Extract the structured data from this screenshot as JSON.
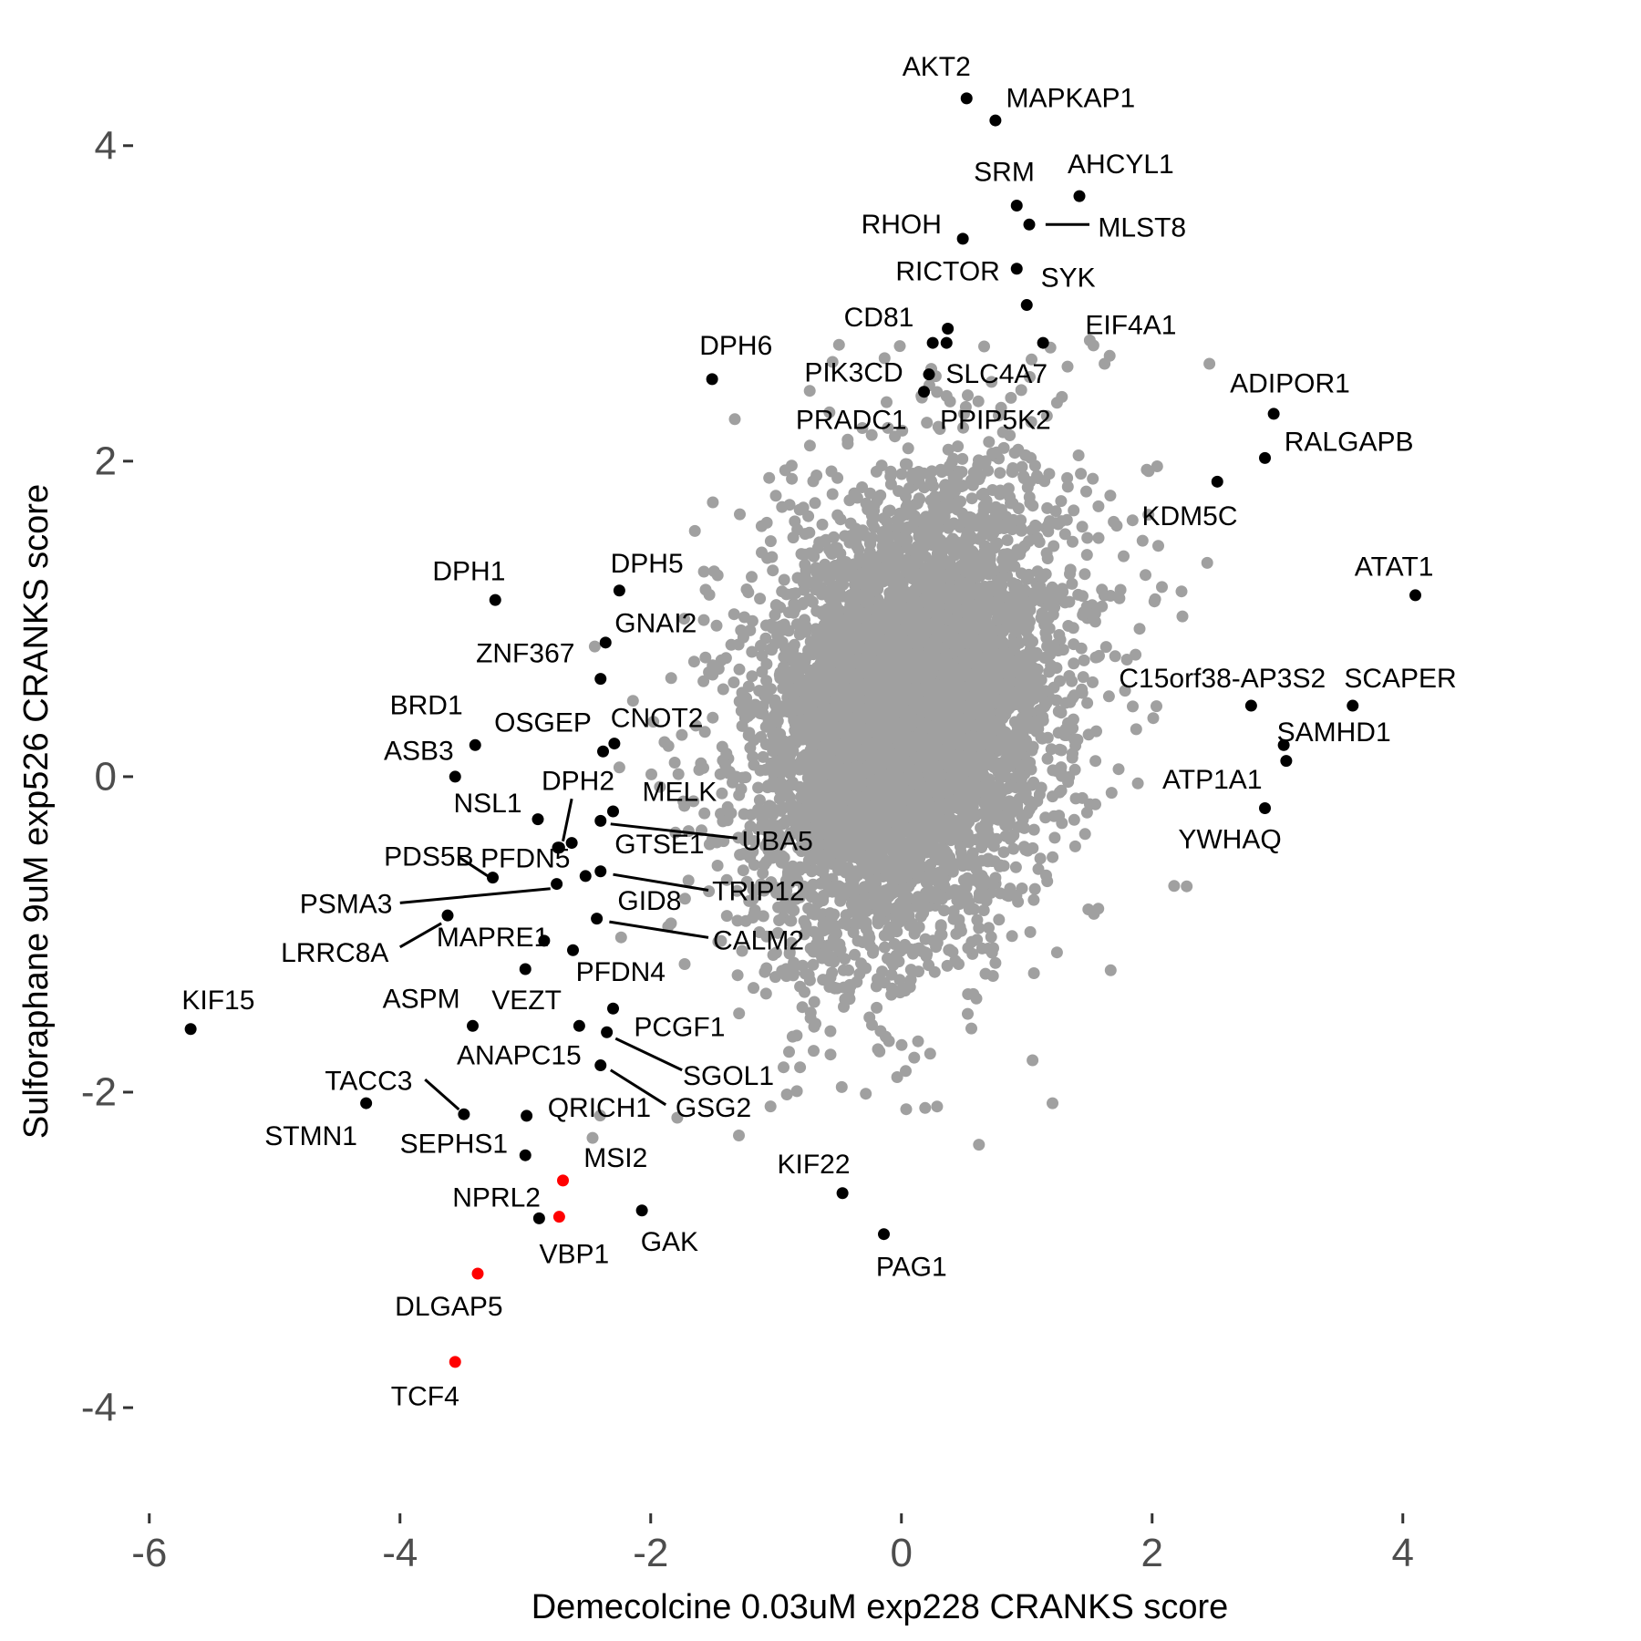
{
  "chart_data": {
    "type": "scatter",
    "xlabel": "Demecolcine 0.03uM exp228 CRANKS score",
    "ylabel": "Sulforaphane 9uM exp526 CRANKS score",
    "xlim": [
      -6.1,
      4.3
    ],
    "ylim": [
      -4.15,
      4.75
    ],
    "xticks": [
      -6,
      -4,
      -2,
      0,
      2,
      4
    ],
    "yticks": [
      -4,
      -2,
      0,
      2,
      4
    ],
    "xtick_labels": [
      "-6",
      "-4",
      "-2",
      "0",
      "2",
      "4"
    ],
    "ytick_labels": [
      "-4",
      "-2",
      "0",
      "2",
      "4"
    ],
    "grid": false,
    "legend": "none",
    "colors": {
      "background_genes": "#a0a0a0",
      "labeled_genes": "#000000",
      "highlight_genes": "#ff0000",
      "leader_line": "#000000"
    },
    "background_cloud": {
      "n_points": 6000,
      "center": [
        0.05,
        0.35
      ],
      "sd": [
        0.55,
        0.7
      ],
      "approx_range_x": [
        -2.9,
        2.6
      ],
      "approx_range_y": [
        -2.4,
        2.8
      ],
      "seed": 42
    },
    "labeled_points": [
      {
        "gene": "AKT2",
        "x": 0.52,
        "y": 4.3,
        "color": "black",
        "label_x": 0.28,
        "label_y": 4.5
      },
      {
        "gene": "MAPKAP1",
        "x": 0.75,
        "y": 4.16,
        "color": "black",
        "label_x": 1.35,
        "label_y": 4.3
      },
      {
        "gene": "SRM",
        "x": 0.92,
        "y": 3.62,
        "color": "black",
        "label_x": 0.82,
        "label_y": 3.83
      },
      {
        "gene": "AHCYL1",
        "x": 1.42,
        "y": 3.68,
        "color": "black",
        "label_x": 1.75,
        "label_y": 3.88
      },
      {
        "gene": "RHOH",
        "x": 0.49,
        "y": 3.41,
        "color": "black",
        "label_x": 0.0,
        "label_y": 3.5
      },
      {
        "gene": "MLST8",
        "x": 1.02,
        "y": 3.5,
        "color": "black",
        "label_x": 1.92,
        "label_y": 3.48,
        "line_from": [
          1.15,
          3.5
        ],
        "line_to": [
          1.5,
          3.5
        ]
      },
      {
        "gene": "RICTOR",
        "x": 0.92,
        "y": 3.22,
        "color": "black",
        "label_x": 0.37,
        "label_y": 3.2
      },
      {
        "gene": "SYK",
        "x": 1.0,
        "y": 2.99,
        "color": "black",
        "label_x": 1.33,
        "label_y": 3.16
      },
      {
        "gene": "EIF4A1",
        "x": 1.13,
        "y": 2.75,
        "color": "black",
        "label_x": 1.83,
        "label_y": 2.86
      },
      {
        "gene": "CD81",
        "x": 0.37,
        "y": 2.84,
        "color": "black",
        "label_x": -0.18,
        "label_y": 2.91
      },
      {
        "gene": "DPH6",
        "x": -1.51,
        "y": 2.52,
        "color": "black",
        "label_x": -1.32,
        "label_y": 2.73
      },
      {
        "gene": "PIK3CD",
        "x": 0.22,
        "y": 2.55,
        "color": "black",
        "label_x": -0.38,
        "label_y": 2.56
      },
      {
        "gene": "SLC4A7",
        "x": 0.25,
        "y": 2.75,
        "color": "black",
        "label_x": 0.76,
        "label_y": 2.55
      },
      {
        "gene": "PRADC1",
        "x": 0.18,
        "y": 2.44,
        "color": "black",
        "label_x": -0.4,
        "label_y": 2.26
      },
      {
        "gene": "PPIP5K2",
        "x": 0.36,
        "y": 2.75,
        "color": "black",
        "label_x": 0.75,
        "label_y": 2.26
      },
      {
        "gene": "ADIPOR1",
        "x": 2.97,
        "y": 2.3,
        "color": "black",
        "label_x": 3.1,
        "label_y": 2.49
      },
      {
        "gene": "RALGAPB",
        "x": 2.9,
        "y": 2.02,
        "color": "black",
        "label_x": 3.57,
        "label_y": 2.12
      },
      {
        "gene": "KDM5C",
        "x": 2.52,
        "y": 1.87,
        "color": "black",
        "label_x": 2.3,
        "label_y": 1.65
      },
      {
        "gene": "ATAT1",
        "x": 4.1,
        "y": 1.15,
        "color": "black",
        "label_x": 3.93,
        "label_y": 1.33
      },
      {
        "gene": "C15orf38-AP3S2",
        "x": 2.79,
        "y": 0.45,
        "color": "black",
        "label_x": 2.56,
        "label_y": 0.62
      },
      {
        "gene": "SCAPER",
        "x": 3.6,
        "y": 0.45,
        "color": "black",
        "label_x": 3.98,
        "label_y": 0.62
      },
      {
        "gene": "SAMHD1",
        "x": 3.05,
        "y": 0.2,
        "color": "black",
        "label_x": 3.45,
        "label_y": 0.28
      },
      {
        "gene": "ATP1A1",
        "x": 3.07,
        "y": 0.1,
        "color": "black",
        "label_x": 2.48,
        "label_y": -0.02
      },
      {
        "gene": "YWHAQ",
        "x": 2.9,
        "y": -0.2,
        "color": "black",
        "label_x": 2.62,
        "label_y": -0.4
      },
      {
        "gene": "DPH1",
        "x": -3.24,
        "y": 1.12,
        "color": "black",
        "label_x": -3.45,
        "label_y": 1.3
      },
      {
        "gene": "DPH5",
        "x": -2.25,
        "y": 1.18,
        "color": "black",
        "label_x": -2.03,
        "label_y": 1.35
      },
      {
        "gene": "GNAI2",
        "x": -2.36,
        "y": 0.85,
        "color": "black",
        "label_x": -1.96,
        "label_y": 0.97
      },
      {
        "gene": "ZNF367",
        "x": -2.4,
        "y": 0.62,
        "color": "black",
        "label_x": -3.0,
        "label_y": 0.78
      },
      {
        "gene": "BRD1",
        "x": -3.4,
        "y": 0.2,
        "color": "black",
        "label_x": -3.79,
        "label_y": 0.45
      },
      {
        "gene": "OSGEP",
        "x": -2.38,
        "y": 0.16,
        "color": "black",
        "label_x": -2.86,
        "label_y": 0.34
      },
      {
        "gene": "CNOT2",
        "x": -2.29,
        "y": 0.21,
        "color": "black",
        "label_x": -1.95,
        "label_y": 0.37
      },
      {
        "gene": "ASB3",
        "x": -3.56,
        "y": 0.0,
        "color": "black",
        "label_x": -3.85,
        "label_y": 0.16
      },
      {
        "gene": "DPH2",
        "x": -2.74,
        "y": -0.45,
        "color": "black",
        "label_x": -2.58,
        "label_y": -0.03,
        "line_from": [
          -2.63,
          -0.14
        ],
        "line_to": [
          -2.7,
          -0.41
        ]
      },
      {
        "gene": "MELK",
        "x": -2.3,
        "y": -0.22,
        "color": "black",
        "label_x": -1.77,
        "label_y": -0.1
      },
      {
        "gene": "NSL1",
        "x": -2.9,
        "y": -0.27,
        "color": "black",
        "label_x": -3.3,
        "label_y": -0.17
      },
      {
        "gene": "UBA5",
        "x": -2.4,
        "y": -0.28,
        "color": "black",
        "label_x": -0.99,
        "label_y": -0.41,
        "line_from": [
          -2.32,
          -0.3
        ],
        "line_to": [
          -1.31,
          -0.39
        ]
      },
      {
        "gene": "GTSE1",
        "x": -2.63,
        "y": -0.42,
        "color": "black",
        "label_x": -1.93,
        "label_y": -0.43
      },
      {
        "gene": "PDS5B",
        "x": -3.26,
        "y": -0.64,
        "color": "black",
        "label_x": -3.77,
        "label_y": -0.51,
        "line_from": [
          -3.53,
          -0.51
        ],
        "line_to": [
          -3.3,
          -0.63
        ]
      },
      {
        "gene": "PFDN5",
        "x": -2.73,
        "y": -0.45,
        "color": "black",
        "label_x": -3.0,
        "label_y": -0.52
      },
      {
        "gene": "TRIP12",
        "x": -2.4,
        "y": -0.6,
        "color": "black",
        "label_x": -1.14,
        "label_y": -0.73,
        "line_from": [
          -2.3,
          -0.62
        ],
        "line_to": [
          -1.54,
          -0.72
        ]
      },
      {
        "gene": "PSMA3",
        "x": -2.75,
        "y": -0.68,
        "color": "black",
        "label_x": -4.43,
        "label_y": -0.81,
        "line_from": [
          -4.0,
          -0.8
        ],
        "line_to": [
          -2.8,
          -0.71
        ]
      },
      {
        "gene": "GID8",
        "x": -2.52,
        "y": -0.63,
        "color": "black",
        "label_x": -2.01,
        "label_y": -0.79
      },
      {
        "gene": "LRRC8A",
        "x": -3.62,
        "y": -0.88,
        "color": "black",
        "label_x": -4.52,
        "label_y": -1.12,
        "line_from": [
          -4.0,
          -1.08
        ],
        "line_to": [
          -3.67,
          -0.93
        ]
      },
      {
        "gene": "MAPRE1",
        "x": -2.85,
        "y": -1.04,
        "color": "black",
        "label_x": -3.26,
        "label_y": -1.02
      },
      {
        "gene": "CALM2",
        "x": -2.43,
        "y": -0.9,
        "color": "black",
        "label_x": -1.14,
        "label_y": -1.04,
        "line_from": [
          -2.33,
          -0.92
        ],
        "line_to": [
          -1.54,
          -1.02
        ]
      },
      {
        "gene": "PFDN4",
        "x": -2.62,
        "y": -1.1,
        "color": "black",
        "label_x": -2.24,
        "label_y": -1.24
      },
      {
        "gene": "KIF15",
        "x": -5.67,
        "y": -1.6,
        "color": "black",
        "label_x": -5.45,
        "label_y": -1.42
      },
      {
        "gene": "ASPM",
        "x": -3.42,
        "y": -1.58,
        "color": "black",
        "label_x": -3.83,
        "label_y": -1.41
      },
      {
        "gene": "VEZT",
        "x": -3.0,
        "y": -1.22,
        "color": "black",
        "label_x": -2.99,
        "label_y": -1.42
      },
      {
        "gene": "PCGF1",
        "x": -2.3,
        "y": -1.47,
        "color": "black",
        "label_x": -1.77,
        "label_y": -1.59
      },
      {
        "gene": "SGOL1",
        "x": -2.35,
        "y": -1.62,
        "color": "black",
        "label_x": -1.38,
        "label_y": -1.9,
        "line_from": [
          -2.28,
          -1.66
        ],
        "line_to": [
          -1.75,
          -1.86
        ]
      },
      {
        "gene": "ANAPC15",
        "x": -2.57,
        "y": -1.58,
        "color": "black",
        "label_x": -3.05,
        "label_y": -1.77
      },
      {
        "gene": "TACC3",
        "x": -3.49,
        "y": -2.14,
        "color": "black",
        "label_x": -4.25,
        "label_y": -1.93,
        "line_from": [
          -3.8,
          -1.92
        ],
        "line_to": [
          -3.53,
          -2.11
        ]
      },
      {
        "gene": "QRICH1",
        "x": -2.99,
        "y": -2.15,
        "color": "black",
        "label_x": -2.41,
        "label_y": -2.1
      },
      {
        "gene": "GSG2",
        "x": -2.4,
        "y": -1.83,
        "color": "black",
        "label_x": -1.5,
        "label_y": -2.1,
        "line_from": [
          -2.32,
          -1.86
        ],
        "line_to": [
          -1.88,
          -2.08
        ]
      },
      {
        "gene": "STMN1",
        "x": -4.27,
        "y": -2.07,
        "color": "black",
        "label_x": -4.71,
        "label_y": -2.28
      },
      {
        "gene": "SEPHS1",
        "x": -3.0,
        "y": -2.4,
        "color": "black",
        "label_x": -3.57,
        "label_y": -2.33
      },
      {
        "gene": "MSI2",
        "x": -2.7,
        "y": -2.56,
        "color": "red",
        "label_x": -2.28,
        "label_y": -2.42
      },
      {
        "gene": "NPRL2",
        "x": -2.89,
        "y": -2.8,
        "color": "black",
        "label_x": -3.23,
        "label_y": -2.67
      },
      {
        "gene": "VBP1",
        "x": -2.73,
        "y": -2.79,
        "color": "red",
        "label_x": -2.61,
        "label_y": -3.03
      },
      {
        "gene": "GAK",
        "x": -2.07,
        "y": -2.75,
        "color": "black",
        "label_x": -1.85,
        "label_y": -2.95
      },
      {
        "gene": "KIF22",
        "x": -0.47,
        "y": -2.64,
        "color": "black",
        "label_x": -0.7,
        "label_y": -2.46
      },
      {
        "gene": "PAG1",
        "x": -0.14,
        "y": -2.9,
        "color": "black",
        "label_x": 0.08,
        "label_y": -3.11
      },
      {
        "gene": "DLGAP5",
        "x": -3.38,
        "y": -3.15,
        "color": "red",
        "label_x": -3.61,
        "label_y": -3.36
      },
      {
        "gene": "TCF4",
        "x": -3.56,
        "y": -3.71,
        "color": "red",
        "label_x": -3.8,
        "label_y": -3.93
      }
    ]
  }
}
